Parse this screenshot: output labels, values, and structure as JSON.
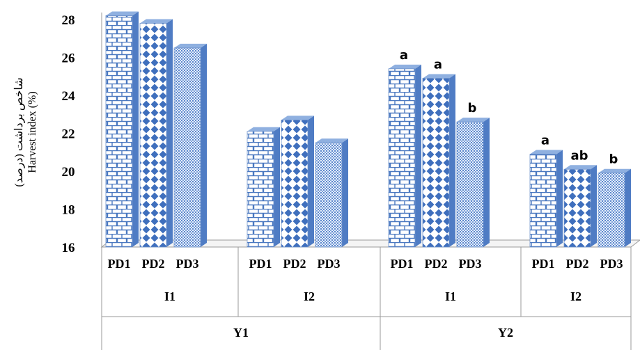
{
  "chart_data": {
    "type": "bar",
    "ylabel_lines": [
      "شاخص برداشت (درصد)",
      "Harvest index (%)"
    ],
    "ylim": [
      16,
      28
    ],
    "yticks": [
      16,
      18,
      20,
      22,
      24,
      26,
      28
    ],
    "grid": false,
    "group_levels": {
      "years": [
        "Y1",
        "Y2"
      ],
      "irrigation": [
        "I1",
        "I2",
        "I1",
        "I2"
      ],
      "planting_dates": [
        "PD1",
        "PD2",
        "PD3"
      ]
    },
    "bars": [
      {
        "year": "Y1",
        "irrigation": "I1",
        "date": "PD1",
        "value": 28.2,
        "label": ""
      },
      {
        "year": "Y1",
        "irrigation": "I1",
        "date": "PD2",
        "value": 27.8,
        "label": ""
      },
      {
        "year": "Y1",
        "irrigation": "I1",
        "date": "PD3",
        "value": 26.5,
        "label": ""
      },
      {
        "year": "Y1",
        "irrigation": "I2",
        "date": "PD1",
        "value": 22.1,
        "label": ""
      },
      {
        "year": "Y1",
        "irrigation": "I2",
        "date": "PD2",
        "value": 22.7,
        "label": ""
      },
      {
        "year": "Y1",
        "irrigation": "I2",
        "date": "PD3",
        "value": 21.5,
        "label": ""
      },
      {
        "year": "Y2",
        "irrigation": "I1",
        "date": "PD1",
        "value": 25.4,
        "label": "a"
      },
      {
        "year": "Y2",
        "irrigation": "I1",
        "date": "PD2",
        "value": 24.9,
        "label": "a"
      },
      {
        "year": "Y2",
        "irrigation": "I1",
        "date": "PD3",
        "value": 22.6,
        "label": "b"
      },
      {
        "year": "Y2",
        "irrigation": "I2",
        "date": "PD1",
        "value": 20.9,
        "label": "a"
      },
      {
        "year": "Y2",
        "irrigation": "I2",
        "date": "PD2",
        "value": 20.1,
        "label": "ab"
      },
      {
        "year": "Y2",
        "irrigation": "I2",
        "date": "PD3",
        "value": 19.9,
        "label": "b"
      }
    ],
    "patterns": {
      "PD1": "brick",
      "PD2": "diamond",
      "PD3": "fine-weave"
    },
    "colors": {
      "pattern_stroke": "#4a78c0",
      "bar_background": "#ffffff",
      "top_face": "#8fb0e0",
      "side_face": "#4f7cc4",
      "axis": "#9a9a9a",
      "text": "#000000"
    }
  }
}
